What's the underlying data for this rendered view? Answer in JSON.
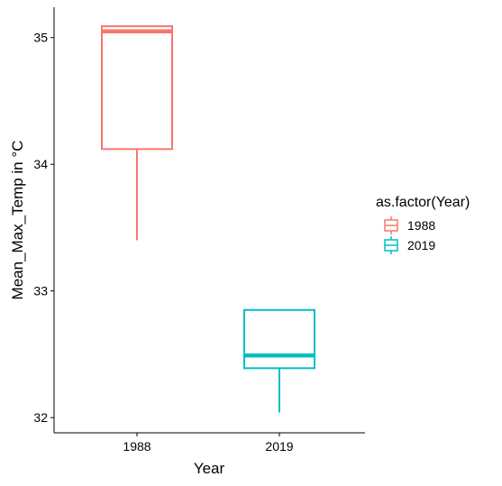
{
  "chart_data": {
    "type": "boxplot",
    "xlabel": "Year",
    "ylabel": "Mean_Max_Temp in °C",
    "categories": [
      "1988",
      "2019"
    ],
    "ylim": [
      31.88,
      35.24
    ],
    "yticks": [
      32,
      33,
      34,
      35
    ],
    "grid": false,
    "legend": {
      "title": "as.factor(Year)",
      "position": "right",
      "entries": [
        "1988",
        "2019"
      ]
    },
    "boxes": [
      {
        "name": "1988",
        "color": "#F8766D",
        "min": 33.4,
        "q1": 34.12,
        "median": 35.05,
        "q3": 35.09,
        "max": 35.09
      },
      {
        "name": "2019",
        "color": "#00BFC4",
        "min": 32.04,
        "q1": 32.39,
        "median": 32.49,
        "q3": 32.85,
        "max": 32.85
      }
    ]
  }
}
